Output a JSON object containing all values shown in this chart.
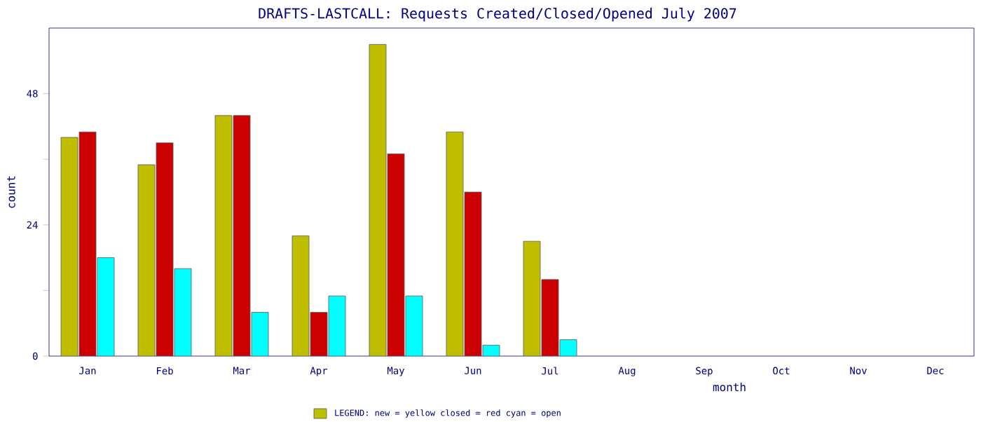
{
  "chart_data": {
    "type": "bar",
    "title": "DRAFTS-LASTCALL: Requests Created/Closed/Opened July 2007",
    "xlabel": "month",
    "ylabel": "count",
    "categories": [
      "Jan",
      "Feb",
      "Mar",
      "Apr",
      "May",
      "Jun",
      "Jul",
      "Aug",
      "Sep",
      "Oct",
      "Nov",
      "Dec"
    ],
    "series": [
      {
        "color": "#bfbf00",
        "values": [
          40,
          35,
          44,
          22,
          57,
          41,
          21,
          null,
          null,
          null,
          null,
          null
        ]
      },
      {
        "color": "#cc0000",
        "values": [
          41,
          39,
          44,
          8,
          37,
          30,
          14,
          null,
          null,
          null,
          null,
          null
        ]
      },
      {
        "color": "#00ffff",
        "values": [
          18,
          16,
          8,
          11,
          11,
          2,
          3,
          null,
          null,
          null,
          null,
          null
        ]
      }
    ],
    "ylim": [
      0,
      60
    ],
    "yticks": [
      0,
      {
        "value": 12,
        "label": null
      },
      24,
      {
        "value": 36,
        "label": null
      },
      48
    ],
    "annotations": [
      "LEGEND: new = yellow  closed = red  cyan = open"
    ],
    "grid": false
  }
}
